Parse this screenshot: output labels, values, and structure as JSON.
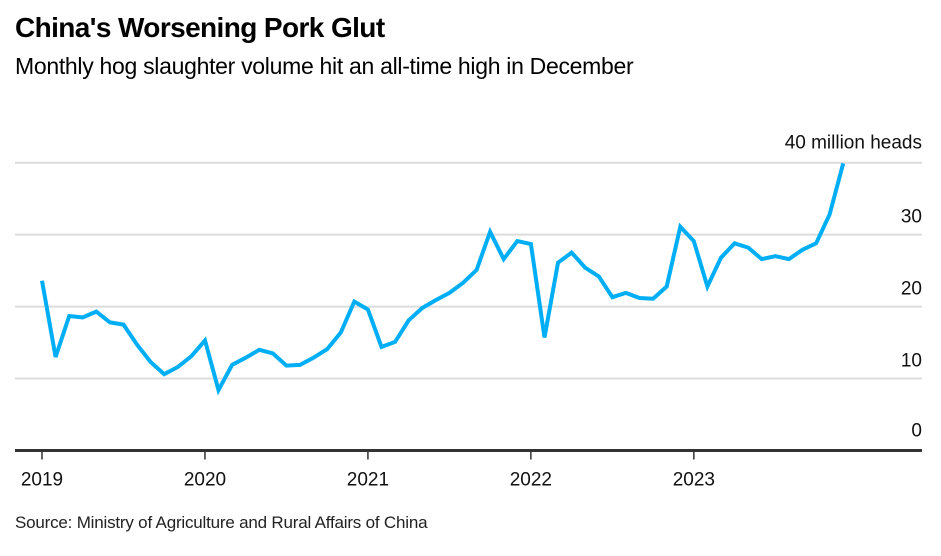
{
  "header": {
    "title": "China's Worsening Pork Glut",
    "subtitle": "Monthly hog slaughter volume hit an all-time high in December"
  },
  "footer": {
    "source": "Source: Ministry of Agriculture and Rural Affairs of China"
  },
  "chart_data": {
    "type": "line",
    "title": "China's Worsening Pork Glut",
    "subtitle": "Monthly hog slaughter volume hit an all-time high in December",
    "xlabel": "",
    "ylabel": "million heads",
    "ylim": [
      0,
      40
    ],
    "yticks": [
      0,
      10,
      20,
      30,
      40
    ],
    "ytick_labels": [
      "0",
      "10",
      "20",
      "30",
      "40 million heads"
    ],
    "x_start": "2019-01",
    "x_end": "2023-12",
    "xticks": [
      "2019",
      "2020",
      "2021",
      "2022",
      "2023"
    ],
    "grid": true,
    "legend": "none",
    "line_color": "#00aef5",
    "series": [
      {
        "name": "Monthly hog slaughter volume",
        "x": [
          "2019-01",
          "2019-02",
          "2019-03",
          "2019-04",
          "2019-05",
          "2019-06",
          "2019-07",
          "2019-08",
          "2019-09",
          "2019-10",
          "2019-11",
          "2019-12",
          "2020-01",
          "2020-02",
          "2020-03",
          "2020-04",
          "2020-05",
          "2020-06",
          "2020-07",
          "2020-08",
          "2020-09",
          "2020-10",
          "2020-11",
          "2020-12",
          "2021-01",
          "2021-02",
          "2021-03",
          "2021-04",
          "2021-05",
          "2021-06",
          "2021-07",
          "2021-08",
          "2021-09",
          "2021-10",
          "2021-11",
          "2021-12",
          "2022-01",
          "2022-02",
          "2022-03",
          "2022-04",
          "2022-05",
          "2022-06",
          "2022-07",
          "2022-08",
          "2022-09",
          "2022-10",
          "2022-11",
          "2022-12",
          "2023-01",
          "2023-02",
          "2023-03",
          "2023-04",
          "2023-05",
          "2023-06",
          "2023-07",
          "2023-08",
          "2023-09",
          "2023-10",
          "2023-11",
          "2023-12"
        ],
        "values": [
          23.6,
          13.0,
          18.7,
          18.5,
          19.3,
          17.8,
          17.5,
          14.7,
          12.3,
          10.6,
          11.6,
          13.1,
          15.3,
          8.4,
          11.9,
          12.9,
          14.0,
          13.5,
          11.8,
          11.9,
          12.9,
          14.1,
          16.4,
          20.7,
          19.6,
          14.4,
          15.1,
          18.1,
          19.8,
          20.9,
          21.9,
          23.3,
          25.1,
          30.4,
          26.6,
          29.1,
          28.7,
          15.7,
          26.1,
          27.5,
          25.4,
          24.2,
          21.3,
          21.9,
          21.2,
          21.1,
          22.8,
          31.1,
          29.1,
          22.8,
          26.8,
          28.8,
          28.2,
          26.6,
          27.0,
          26.6,
          27.9,
          28.8,
          32.8,
          39.9
        ]
      }
    ]
  }
}
